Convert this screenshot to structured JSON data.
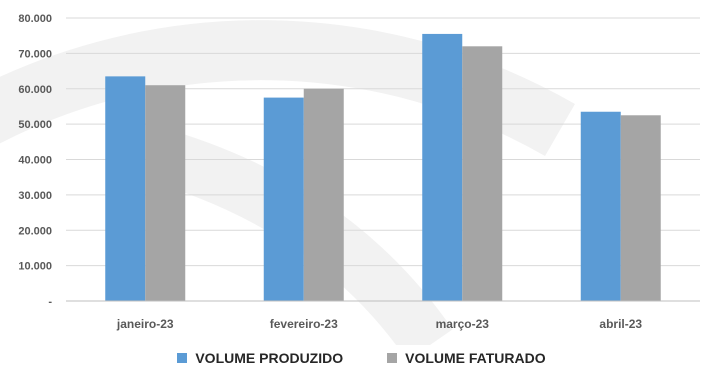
{
  "chart_data": {
    "type": "bar",
    "categories": [
      "janeiro-23",
      "fevereiro-23",
      "março-23",
      "abril-23"
    ],
    "series": [
      {
        "name": "VOLUME PRODUZIDO",
        "color": "#5B9BD5",
        "values": [
          63500,
          57500,
          75500,
          53500
        ]
      },
      {
        "name": "VOLUME FATURADO",
        "color": "#A5A5A5",
        "values": [
          61000,
          60000,
          72000,
          52500
        ]
      }
    ],
    "y_ticks": [
      {
        "value": 0,
        "label": "-"
      },
      {
        "value": 10000,
        "label": "10.000"
      },
      {
        "value": 20000,
        "label": "20.000"
      },
      {
        "value": 30000,
        "label": "30.000"
      },
      {
        "value": 40000,
        "label": "40.000"
      },
      {
        "value": 50000,
        "label": "50.000"
      },
      {
        "value": 60000,
        "label": "60.000"
      },
      {
        "value": 70000,
        "label": "70.000"
      },
      {
        "value": 80000,
        "label": "80.000"
      }
    ],
    "ylim": [
      0,
      80000
    ],
    "grid": true,
    "legend_position": "bottom"
  }
}
